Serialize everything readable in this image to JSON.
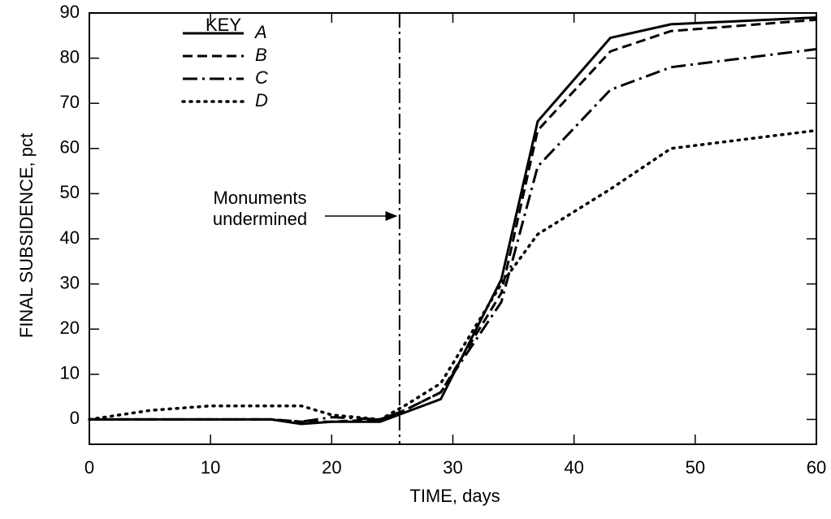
{
  "chart_data": {
    "type": "line",
    "x_label": "TIME, days",
    "y_label": "FINAL SUBSIDENCE, pct",
    "legend_title": "KEY",
    "legend": "upper left",
    "x": [
      0,
      5,
      10,
      15,
      17.5,
      20,
      24,
      26,
      29,
      34,
      37,
      43,
      48,
      60
    ],
    "series": [
      {
        "name": "A",
        "color": "#000000",
        "style": "solid",
        "values": [
          0,
          0,
          0,
          0,
          -1,
          -0.5,
          -0.5,
          1.5,
          4.5,
          31,
          66,
          84.5,
          87.5,
          89
        ]
      },
      {
        "name": "B",
        "color": "#000000",
        "style": "dashed",
        "values": [
          0,
          0,
          0,
          0,
          -0.5,
          -0.5,
          0,
          2,
          6,
          28,
          64,
          81.5,
          86,
          88.5
        ]
      },
      {
        "name": "C",
        "color": "#000000",
        "style": "dashdot",
        "values": [
          0,
          0,
          0,
          0,
          -0.5,
          0.5,
          0,
          2,
          6,
          26,
          56,
          73,
          78,
          82
        ]
      },
      {
        "name": "D",
        "color": "#000000",
        "style": "dotted",
        "values": [
          0,
          2,
          3,
          3,
          3,
          1,
          0,
          3,
          8,
          30,
          41,
          51,
          60,
          64
        ]
      }
    ],
    "annotation": {
      "lines": [
        "Monuments",
        "undermined"
      ],
      "x": 25.6
    },
    "xlim": [
      0,
      60
    ],
    "xticks": [
      0,
      10,
      20,
      30,
      40,
      50,
      60
    ],
    "ylim": [
      -5.5,
      90
    ],
    "yticks": [
      0,
      10,
      20,
      30,
      40,
      50,
      60,
      70,
      80,
      90
    ]
  }
}
